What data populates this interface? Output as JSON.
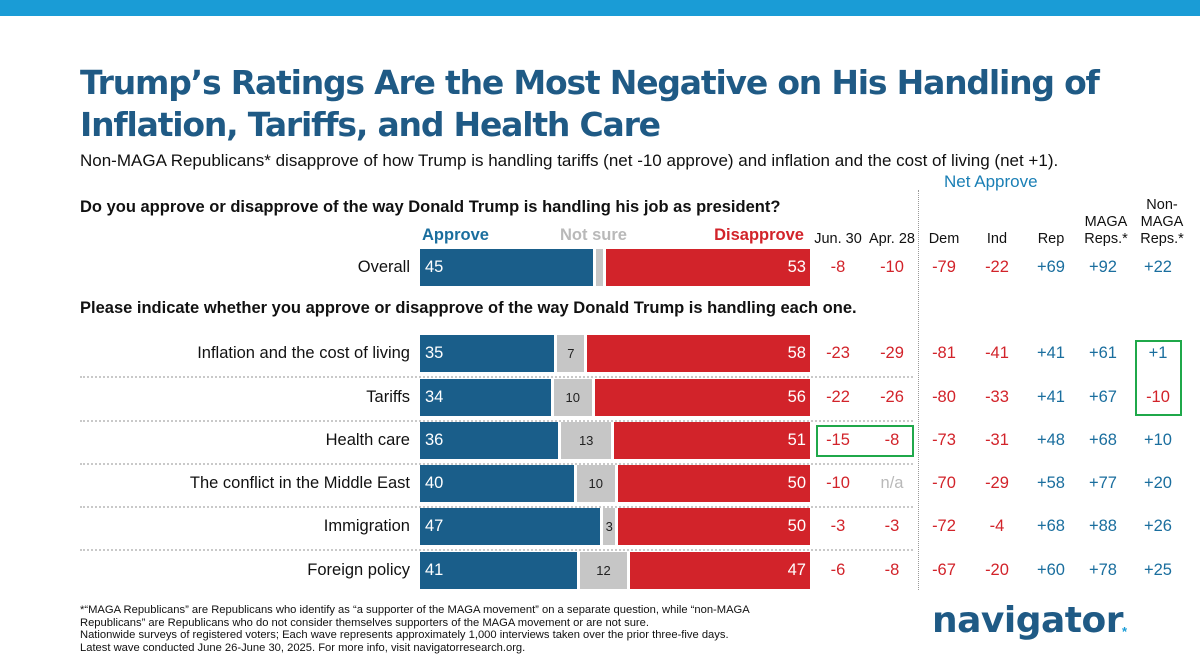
{
  "title": "Trump’s Ratings Are the Most Negative on His Handling of Inflation, Tariffs, and Health Care",
  "subtitle": "Non-MAGA Republicans* disapprove of how Trump is handling tariffs (net -10 approve) and inflation and the cost of living (net +1).",
  "net_approve_label": "Net Approve",
  "question1": "Do you approve or disapprove of the way Donald Trump is handling his job as president?",
  "question2": "Please indicate whether you approve or disapprove of the way Donald Trump is handling each one.",
  "legend": {
    "approve": "Approve",
    "not_sure": "Not sure",
    "disapprove": "Disapprove"
  },
  "columns": [
    {
      "key": "jun30",
      "label": "Jun. 30"
    },
    {
      "key": "apr28",
      "label": "Apr. 28"
    },
    {
      "key": "dem",
      "label": "Dem"
    },
    {
      "key": "ind",
      "label": "Ind"
    },
    {
      "key": "rep",
      "label": "Rep"
    },
    {
      "key": "maga",
      "label": "MAGA Reps.*"
    },
    {
      "key": "nonmaga",
      "label": "Non-MAGA Reps.*"
    }
  ],
  "colors": {
    "approve": "#1a5e8a",
    "not_sure": "#c6c6c6",
    "disapprove": "#d2232a",
    "positive": "#1a6e9e",
    "negative": "#d2232a",
    "highlight": "#1fa84a",
    "header_bar": "#1a9cd6"
  },
  "chart_data": {
    "type": "bar",
    "orientation": "horizontal",
    "stacked": true,
    "title": "Trump’s Ratings Are the Most Negative on His Handling of Inflation, Tariffs, and Health Care",
    "series_names": [
      "Approve",
      "Not sure",
      "Disapprove"
    ],
    "rows": [
      {
        "label": "Overall",
        "approve": 45,
        "not_sure": 2,
        "disapprove": 53,
        "show_not_sure_label": false,
        "net": [
          "-8",
          "-10",
          "-79",
          "-22",
          "+69",
          "+92",
          "+22"
        ]
      },
      {
        "label": "Inflation and the cost of living",
        "approve": 35,
        "not_sure": 7,
        "disapprove": 58,
        "show_not_sure_label": true,
        "net": [
          "-23",
          "-29",
          "-81",
          "-41",
          "+41",
          "+61",
          "+1"
        ]
      },
      {
        "label": "Tariffs",
        "approve": 34,
        "not_sure": 10,
        "disapprove": 56,
        "show_not_sure_label": true,
        "net": [
          "-22",
          "-26",
          "-80",
          "-33",
          "+41",
          "+67",
          "-10"
        ]
      },
      {
        "label": "Health care",
        "approve": 36,
        "not_sure": 13,
        "disapprove": 51,
        "show_not_sure_label": true,
        "net": [
          "-15",
          "-8",
          "-73",
          "-31",
          "+48",
          "+68",
          "+10"
        ]
      },
      {
        "label": "The conflict in the Middle East",
        "approve": 40,
        "not_sure": 10,
        "disapprove": 50,
        "show_not_sure_label": true,
        "net": [
          "-10",
          "n/a",
          "-70",
          "-29",
          "+58",
          "+77",
          "+20"
        ]
      },
      {
        "label": "Immigration",
        "approve": 47,
        "not_sure": 3,
        "disapprove": 50,
        "show_not_sure_label": true,
        "net": [
          "-3",
          "-3",
          "-72",
          "-4",
          "+68",
          "+88",
          "+26"
        ]
      },
      {
        "label": "Foreign policy",
        "approve": 41,
        "not_sure": 12,
        "disapprove": 47,
        "show_not_sure_label": true,
        "net": [
          "-6",
          "-8",
          "-67",
          "-20",
          "+60",
          "+78",
          "+25"
        ]
      }
    ]
  },
  "footnotes": [
    "*“MAGA Republicans” are Republicans who identify as “a supporter of the MAGA movement” on a separate question, while “non-MAGA",
    "Republicans” are Republicans who do not consider themselves supporters of the MAGA movement or are not sure.",
    "Nationwide surveys of registered voters; Each wave represents approximately 1,000 interviews taken over the prior three-five days.",
    "Latest wave conducted June 26-June 30, 2025. For more info, visit navigatorresearch.org."
  ],
  "logo_text": "navigator",
  "logo_mark": "*"
}
